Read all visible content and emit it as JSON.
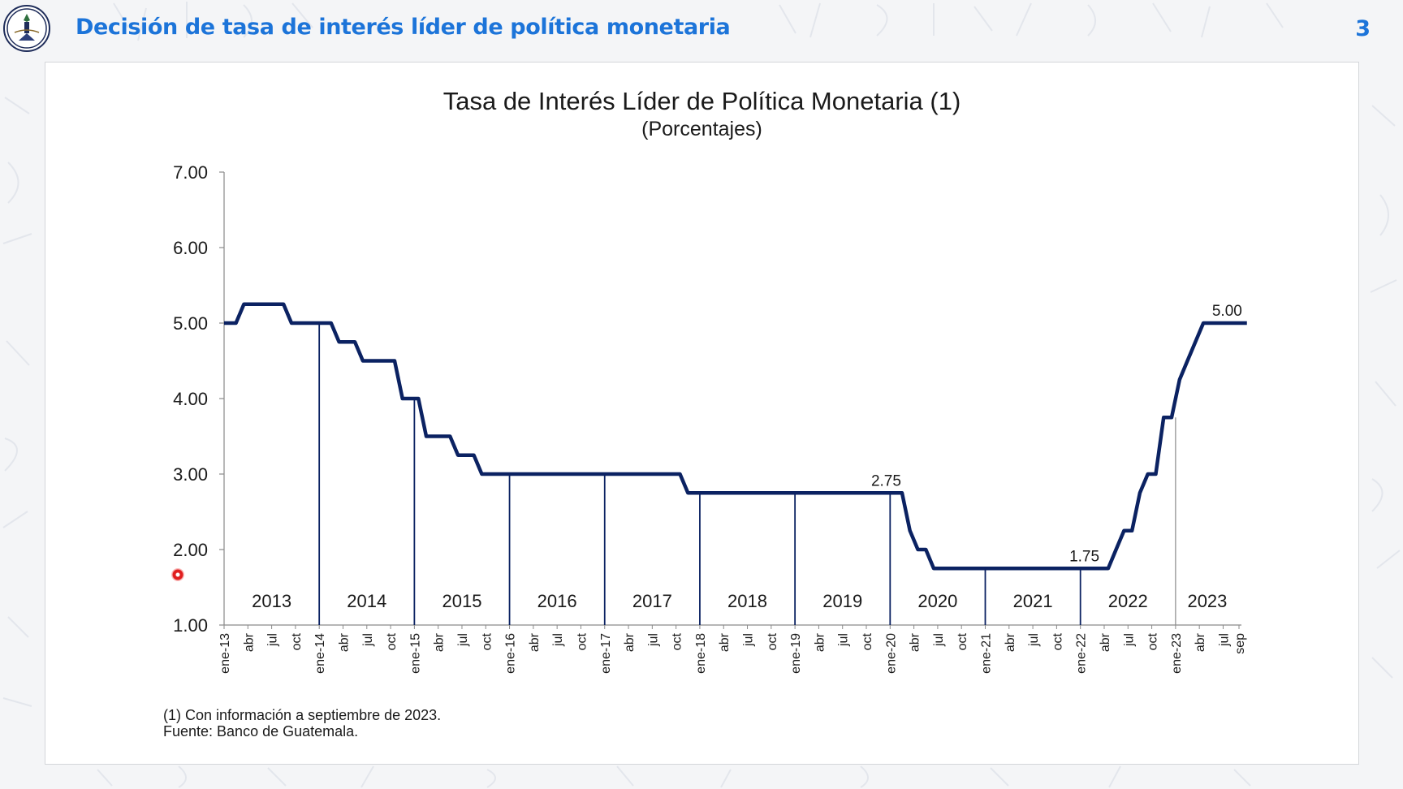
{
  "header": {
    "title": "Decisión de tasa de interés líder de política monetaria",
    "page_number": "3",
    "accent_color": "#1c74d9"
  },
  "logo": {
    "icon": "banco-de-guatemala-seal-icon",
    "text": "BANCO DE GUATEMALA"
  },
  "chart_data": {
    "type": "line",
    "title": "Tasa de Interés Líder de Política Monetaria (1)",
    "subtitle": "(Porcentajes)",
    "ylim": [
      1.0,
      7.0
    ],
    "y_ticks": [
      "1.00",
      "2.00",
      "3.00",
      "4.00",
      "5.00",
      "6.00",
      "7.00"
    ],
    "x_tick_labels": [
      "ene-13",
      "abr",
      "jul",
      "oct",
      "ene-14",
      "abr",
      "jul",
      "oct",
      "ene-15",
      "abr",
      "jul",
      "oct",
      "ene-16",
      "abr",
      "jul",
      "oct",
      "ene-17",
      "abr",
      "jul",
      "oct",
      "ene-18",
      "abr",
      "jul",
      "oct",
      "ene-19",
      "abr",
      "jul",
      "oct",
      "ene-20",
      "abr",
      "jul",
      "oct",
      "ene-21",
      "abr",
      "jul",
      "oct",
      "ene-22",
      "abr",
      "jul",
      "oct",
      "ene-23",
      "abr",
      "jul",
      "sep"
    ],
    "year_labels": [
      "2013",
      "2014",
      "2015",
      "2016",
      "2017",
      "2018",
      "2019",
      "2020",
      "2021",
      "2022",
      "2023"
    ],
    "series": [
      {
        "color": "#0b2262",
        "points": [
          [
            "2013-01",
            5.0
          ],
          [
            "2013-02",
            5.0
          ],
          [
            "2013-03",
            5.25
          ],
          [
            "2013-04",
            5.25
          ],
          [
            "2013-05",
            5.25
          ],
          [
            "2013-06",
            5.25
          ],
          [
            "2013-07",
            5.25
          ],
          [
            "2013-08",
            5.25
          ],
          [
            "2013-09",
            5.0
          ],
          [
            "2013-10",
            5.0
          ],
          [
            "2013-11",
            5.0
          ],
          [
            "2013-12",
            5.0
          ],
          [
            "2014-01",
            5.0
          ],
          [
            "2014-02",
            5.0
          ],
          [
            "2014-03",
            4.75
          ],
          [
            "2014-04",
            4.75
          ],
          [
            "2014-05",
            4.75
          ],
          [
            "2014-06",
            4.5
          ],
          [
            "2014-07",
            4.5
          ],
          [
            "2014-08",
            4.5
          ],
          [
            "2014-09",
            4.5
          ],
          [
            "2014-10",
            4.5
          ],
          [
            "2014-11",
            4.0
          ],
          [
            "2014-12",
            4.0
          ],
          [
            "2015-01",
            4.0
          ],
          [
            "2015-02",
            3.5
          ],
          [
            "2015-03",
            3.5
          ],
          [
            "2015-04",
            3.5
          ],
          [
            "2015-05",
            3.5
          ],
          [
            "2015-06",
            3.25
          ],
          [
            "2015-07",
            3.25
          ],
          [
            "2015-08",
            3.25
          ],
          [
            "2015-09",
            3.0
          ],
          [
            "2015-10",
            3.0
          ],
          [
            "2015-11",
            3.0
          ],
          [
            "2015-12",
            3.0
          ],
          [
            "2016-01",
            3.0
          ],
          [
            "2016-02",
            3.0
          ],
          [
            "2016-03",
            3.0
          ],
          [
            "2016-04",
            3.0
          ],
          [
            "2016-05",
            3.0
          ],
          [
            "2016-06",
            3.0
          ],
          [
            "2016-07",
            3.0
          ],
          [
            "2016-08",
            3.0
          ],
          [
            "2016-09",
            3.0
          ],
          [
            "2016-10",
            3.0
          ],
          [
            "2016-11",
            3.0
          ],
          [
            "2016-12",
            3.0
          ],
          [
            "2017-01",
            3.0
          ],
          [
            "2017-02",
            3.0
          ],
          [
            "2017-03",
            3.0
          ],
          [
            "2017-04",
            3.0
          ],
          [
            "2017-05",
            3.0
          ],
          [
            "2017-06",
            3.0
          ],
          [
            "2017-07",
            3.0
          ],
          [
            "2017-08",
            3.0
          ],
          [
            "2017-09",
            3.0
          ],
          [
            "2017-10",
            3.0
          ],
          [
            "2017-11",
            2.75
          ],
          [
            "2017-12",
            2.75
          ],
          [
            "2018-01",
            2.75
          ],
          [
            "2018-02",
            2.75
          ],
          [
            "2018-03",
            2.75
          ],
          [
            "2018-04",
            2.75
          ],
          [
            "2018-05",
            2.75
          ],
          [
            "2018-06",
            2.75
          ],
          [
            "2018-07",
            2.75
          ],
          [
            "2018-08",
            2.75
          ],
          [
            "2018-09",
            2.75
          ],
          [
            "2018-10",
            2.75
          ],
          [
            "2018-11",
            2.75
          ],
          [
            "2018-12",
            2.75
          ],
          [
            "2019-01",
            2.75
          ],
          [
            "2019-02",
            2.75
          ],
          [
            "2019-03",
            2.75
          ],
          [
            "2019-04",
            2.75
          ],
          [
            "2019-05",
            2.75
          ],
          [
            "2019-06",
            2.75
          ],
          [
            "2019-07",
            2.75
          ],
          [
            "2019-08",
            2.75
          ],
          [
            "2019-09",
            2.75
          ],
          [
            "2019-10",
            2.75
          ],
          [
            "2019-11",
            2.75
          ],
          [
            "2019-12",
            2.75
          ],
          [
            "2020-01",
            2.75
          ],
          [
            "2020-02",
            2.75
          ],
          [
            "2020-03",
            2.25
          ],
          [
            "2020-04",
            2.0
          ],
          [
            "2020-05",
            2.0
          ],
          [
            "2020-06",
            1.75
          ],
          [
            "2020-07",
            1.75
          ],
          [
            "2020-08",
            1.75
          ],
          [
            "2020-09",
            1.75
          ],
          [
            "2020-10",
            1.75
          ],
          [
            "2020-11",
            1.75
          ],
          [
            "2020-12",
            1.75
          ],
          [
            "2021-01",
            1.75
          ],
          [
            "2021-02",
            1.75
          ],
          [
            "2021-03",
            1.75
          ],
          [
            "2021-04",
            1.75
          ],
          [
            "2021-05",
            1.75
          ],
          [
            "2021-06",
            1.75
          ],
          [
            "2021-07",
            1.75
          ],
          [
            "2021-08",
            1.75
          ],
          [
            "2021-09",
            1.75
          ],
          [
            "2021-10",
            1.75
          ],
          [
            "2021-11",
            1.75
          ],
          [
            "2021-12",
            1.75
          ],
          [
            "2022-01",
            1.75
          ],
          [
            "2022-02",
            1.75
          ],
          [
            "2022-03",
            1.75
          ],
          [
            "2022-04",
            1.75
          ],
          [
            "2022-05",
            2.0
          ],
          [
            "2022-06",
            2.25
          ],
          [
            "2022-07",
            2.25
          ],
          [
            "2022-08",
            2.75
          ],
          [
            "2022-09",
            3.0
          ],
          [
            "2022-10",
            3.0
          ],
          [
            "2022-11",
            3.75
          ],
          [
            "2022-12",
            3.75
          ],
          [
            "2023-01",
            4.25
          ],
          [
            "2023-02",
            4.5
          ],
          [
            "2023-03",
            4.75
          ],
          [
            "2023-04",
            5.0
          ],
          [
            "2023-05",
            5.0
          ],
          [
            "2023-06",
            5.0
          ],
          [
            "2023-07",
            5.0
          ],
          [
            "2023-08",
            5.0
          ],
          [
            "2023-09",
            5.0
          ]
        ]
      }
    ],
    "annotations": [
      {
        "label": "5.00",
        "x": "2023-07",
        "y": 5.0
      },
      {
        "label": "2.75",
        "x": "2019-12",
        "y": 2.75
      },
      {
        "label": "1.75",
        "x": "2022-01",
        "y": 1.75
      }
    ],
    "grid": false
  },
  "footnote": {
    "line1": "(1) Con información a septiembre de 2023.",
    "line2": "Fuente: Banco de Guatemala."
  }
}
